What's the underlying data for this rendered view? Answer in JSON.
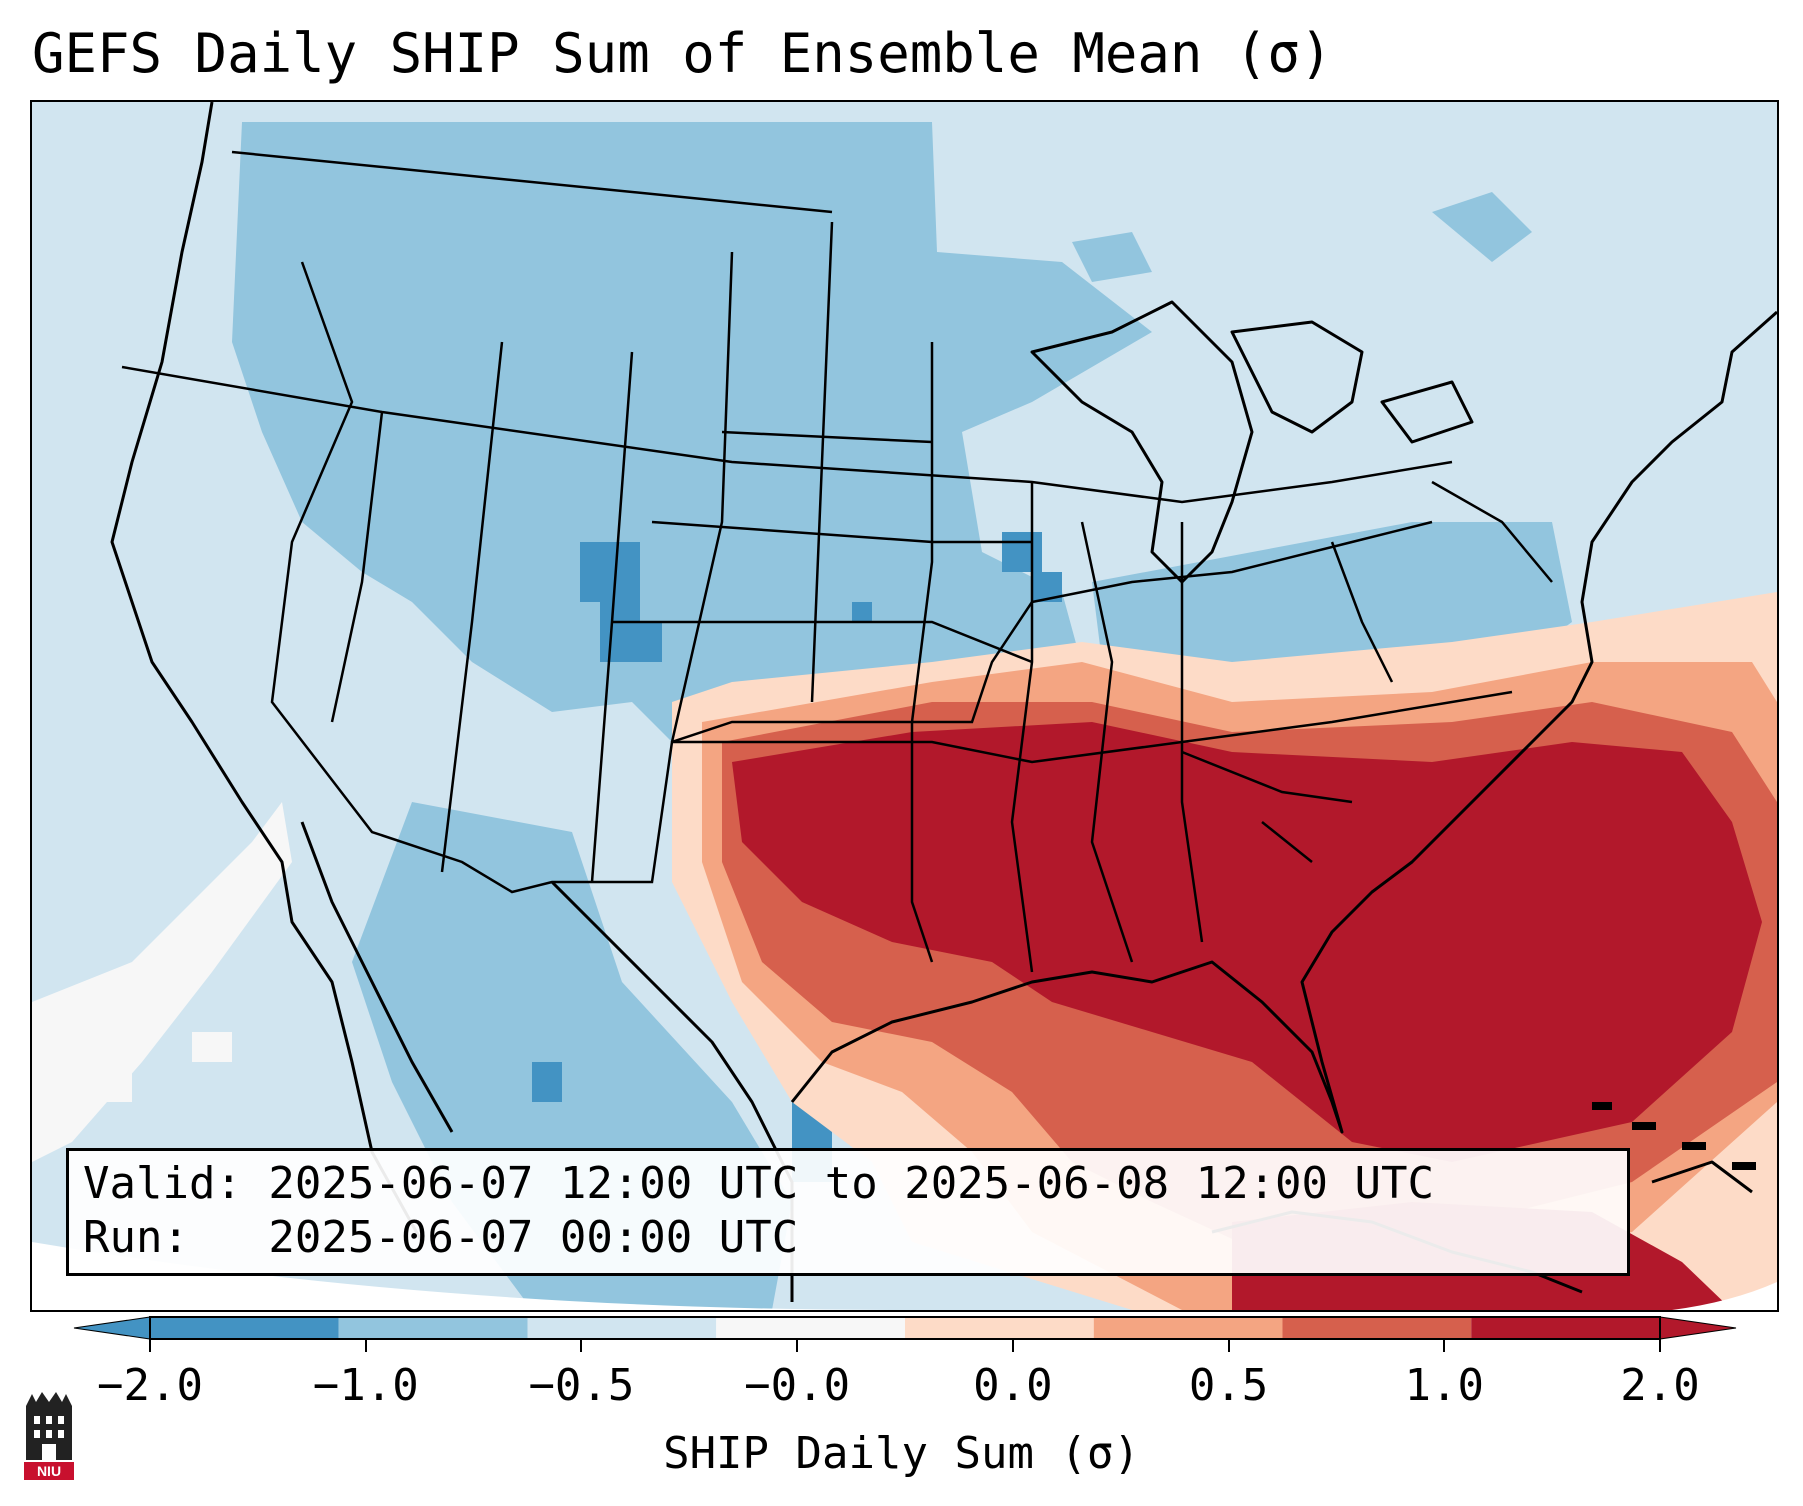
{
  "title": "GEFS Daily SHIP Sum of Ensemble Mean (σ)",
  "info": {
    "valid_line": "Valid: 2025-06-07 12:00 UTC to 2025-06-08 12:00 UTC",
    "run_line": "Run:   2025-06-07 00:00 UTC"
  },
  "colorbar": {
    "label": "SHIP Daily Sum (σ)",
    "ticks": [
      "−2.0",
      "−1.0",
      "−0.5",
      "−0.0",
      "0.0",
      "0.5",
      "1.0",
      "2.0"
    ],
    "colors": [
      "#4393c3",
      "#92c5de",
      "#d1e5f0",
      "#f7f7f7",
      "#fddbc7",
      "#f4a582",
      "#d6604d",
      "#b2182b"
    ],
    "extend": "both"
  },
  "map": {
    "region": "Continental United States",
    "background_color": "#d1e5f0",
    "positive_anomaly_region": "Southern Plains to Southeast and western Atlantic",
    "min_color": "#4393c3",
    "max_color": "#b2182b"
  },
  "logo": {
    "text": "NIU"
  }
}
